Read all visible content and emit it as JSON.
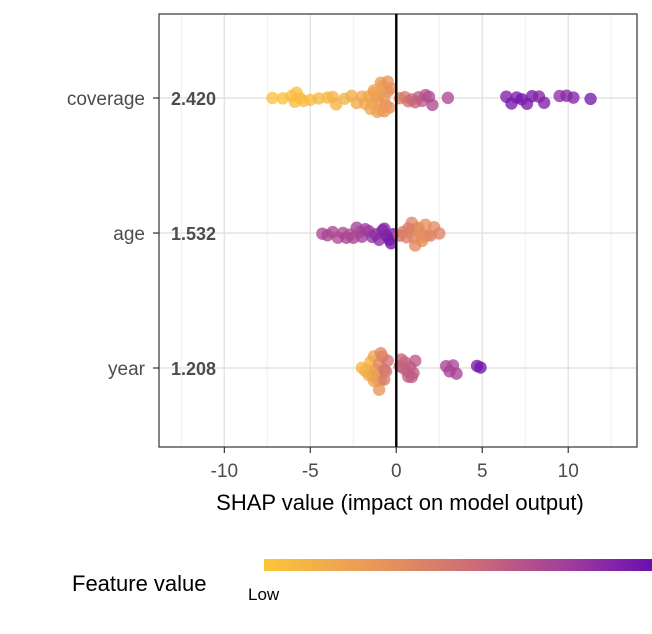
{
  "chart_data": {
    "type": "scatter",
    "title": "",
    "xlabel": "SHAP value (impact on model output)",
    "ylabel": "",
    "xlim": [
      -13.8,
      14
    ],
    "x_ticks": [
      -10,
      -5,
      0,
      5,
      10
    ],
    "x_tick_labels": [
      "-10",
      "-5",
      "0",
      "5",
      "10"
    ],
    "grid": true,
    "zero_line": 0,
    "features": [
      {
        "name": "coverage",
        "mean_abs_shap": "2.420"
      },
      {
        "name": "age",
        "mean_abs_shap": "1.532"
      },
      {
        "name": "year",
        "mean_abs_shap": "1.208"
      }
    ],
    "points": {
      "coverage": [
        {
          "x": -7.2,
          "v": 0.02
        },
        {
          "x": -6.6,
          "v": 0.03
        },
        {
          "x": -6.1,
          "v": 0.04
        },
        {
          "x": -5.9,
          "v": 0.05
        },
        {
          "x": -5.8,
          "v": 0.04
        },
        {
          "x": -5.6,
          "v": 0.06
        },
        {
          "x": -5.4,
          "v": 0.05
        },
        {
          "x": -5.0,
          "v": 0.06
        },
        {
          "x": -4.5,
          "v": 0.08
        },
        {
          "x": -4.0,
          "v": 0.08
        },
        {
          "x": -3.7,
          "v": 0.1
        },
        {
          "x": -3.5,
          "v": 0.12
        },
        {
          "x": -3.0,
          "v": 0.12
        },
        {
          "x": -2.6,
          "v": 0.15
        },
        {
          "x": -2.3,
          "v": 0.16
        },
        {
          "x": -2.0,
          "v": 0.18
        },
        {
          "x": -1.8,
          "v": 0.2
        },
        {
          "x": -1.6,
          "v": 0.18
        },
        {
          "x": -1.4,
          "v": 0.2
        },
        {
          "x": -1.3,
          "v": 0.22
        },
        {
          "x": -1.2,
          "v": 0.2
        },
        {
          "x": -1.1,
          "v": 0.24
        },
        {
          "x": -1.0,
          "v": 0.22
        },
        {
          "x": -0.9,
          "v": 0.25
        },
        {
          "x": -0.8,
          "v": 0.26
        },
        {
          "x": -0.7,
          "v": 0.28
        },
        {
          "x": -0.6,
          "v": 0.3
        },
        {
          "x": -0.5,
          "v": 0.28
        },
        {
          "x": -0.4,
          "v": 0.32
        },
        {
          "x": -0.3,
          "v": 0.33
        },
        {
          "x": -1.5,
          "v": 0.2
        },
        {
          "x": -1.1,
          "v": 0.22
        },
        {
          "x": -0.7,
          "v": 0.27
        },
        {
          "x": -1.3,
          "v": 0.21
        },
        {
          "x": -0.9,
          "v": 0.25
        },
        {
          "x": -0.5,
          "v": 0.3
        },
        {
          "x": 0.2,
          "v": 0.4
        },
        {
          "x": 0.5,
          "v": 0.45
        },
        {
          "x": 0.7,
          "v": 0.5
        },
        {
          "x": 0.9,
          "v": 0.55
        },
        {
          "x": 1.1,
          "v": 0.58
        },
        {
          "x": 1.3,
          "v": 0.6
        },
        {
          "x": 1.5,
          "v": 0.62
        },
        {
          "x": 1.7,
          "v": 0.66
        },
        {
          "x": 1.9,
          "v": 0.7
        },
        {
          "x": 2.1,
          "v": 0.72
        },
        {
          "x": 3.0,
          "v": 0.72
        },
        {
          "x": 6.4,
          "v": 0.92
        },
        {
          "x": 6.7,
          "v": 0.95
        },
        {
          "x": 7.0,
          "v": 0.93
        },
        {
          "x": 7.3,
          "v": 0.97
        },
        {
          "x": 7.6,
          "v": 0.94
        },
        {
          "x": 7.9,
          "v": 0.96
        },
        {
          "x": 8.3,
          "v": 0.9
        },
        {
          "x": 8.6,
          "v": 0.92
        },
        {
          "x": 9.5,
          "v": 0.85
        },
        {
          "x": 9.9,
          "v": 0.88
        },
        {
          "x": 10.3,
          "v": 0.9
        },
        {
          "x": 11.3,
          "v": 0.95
        }
      ],
      "age": [
        {
          "x": -4.3,
          "v": 0.72
        },
        {
          "x": -4.0,
          "v": 0.74
        },
        {
          "x": -3.7,
          "v": 0.73
        },
        {
          "x": -3.4,
          "v": 0.7
        },
        {
          "x": -3.1,
          "v": 0.72
        },
        {
          "x": -2.9,
          "v": 0.75
        },
        {
          "x": -2.7,
          "v": 0.7
        },
        {
          "x": -2.5,
          "v": 0.74
        },
        {
          "x": -2.3,
          "v": 0.76
        },
        {
          "x": -2.1,
          "v": 0.72
        },
        {
          "x": -2.0,
          "v": 0.77
        },
        {
          "x": -1.8,
          "v": 0.78
        },
        {
          "x": -1.6,
          "v": 0.8
        },
        {
          "x": -1.4,
          "v": 0.82
        },
        {
          "x": -1.2,
          "v": 0.85
        },
        {
          "x": -1.0,
          "v": 0.87
        },
        {
          "x": -0.8,
          "v": 0.9
        },
        {
          "x": -0.6,
          "v": 0.92
        },
        {
          "x": -0.4,
          "v": 0.95
        },
        {
          "x": -0.2,
          "v": 0.93
        },
        {
          "x": -0.7,
          "v": 0.9
        },
        {
          "x": -0.3,
          "v": 0.96
        },
        {
          "x": 0.2,
          "v": 0.5
        },
        {
          "x": 0.4,
          "v": 0.45
        },
        {
          "x": 0.6,
          "v": 0.42
        },
        {
          "x": 0.8,
          "v": 0.4
        },
        {
          "x": 1.0,
          "v": 0.38
        },
        {
          "x": 1.2,
          "v": 0.35
        },
        {
          "x": 1.4,
          "v": 0.33
        },
        {
          "x": 1.6,
          "v": 0.32
        },
        {
          "x": 1.8,
          "v": 0.35
        },
        {
          "x": 2.0,
          "v": 0.38
        },
        {
          "x": 2.2,
          "v": 0.36
        },
        {
          "x": 2.5,
          "v": 0.4
        },
        {
          "x": 1.3,
          "v": 0.34
        },
        {
          "x": 1.5,
          "v": 0.33
        },
        {
          "x": 1.1,
          "v": 0.36
        },
        {
          "x": 0.9,
          "v": 0.38
        },
        {
          "x": 1.7,
          "v": 0.34
        },
        {
          "x": 0.7,
          "v": 0.43
        }
      ],
      "year": [
        {
          "x": -2.0,
          "v": 0.1
        },
        {
          "x": -1.8,
          "v": 0.12
        },
        {
          "x": -1.7,
          "v": 0.1
        },
        {
          "x": -1.6,
          "v": 0.15
        },
        {
          "x": -1.5,
          "v": 0.12
        },
        {
          "x": -1.4,
          "v": 0.18
        },
        {
          "x": -1.3,
          "v": 0.2
        },
        {
          "x": -1.2,
          "v": 0.22
        },
        {
          "x": -1.1,
          "v": 0.25
        },
        {
          "x": -1.0,
          "v": 0.35
        },
        {
          "x": -0.9,
          "v": 0.4
        },
        {
          "x": -0.8,
          "v": 0.42
        },
        {
          "x": -0.7,
          "v": 0.45
        },
        {
          "x": -0.6,
          "v": 0.48
        },
        {
          "x": -0.5,
          "v": 0.5
        },
        {
          "x": -1.3,
          "v": 0.2
        },
        {
          "x": -1.1,
          "v": 0.24
        },
        {
          "x": -0.9,
          "v": 0.38
        },
        {
          "x": -0.7,
          "v": 0.44
        },
        {
          "x": -1.0,
          "v": 0.3
        },
        {
          "x": 0.2,
          "v": 0.55
        },
        {
          "x": 0.4,
          "v": 0.58
        },
        {
          "x": 0.6,
          "v": 0.6
        },
        {
          "x": 0.8,
          "v": 0.62
        },
        {
          "x": 1.0,
          "v": 0.62
        },
        {
          "x": 1.1,
          "v": 0.64
        },
        {
          "x": 0.5,
          "v": 0.6
        },
        {
          "x": 0.7,
          "v": 0.61
        },
        {
          "x": 0.9,
          "v": 0.63
        },
        {
          "x": 0.3,
          "v": 0.57
        },
        {
          "x": 2.9,
          "v": 0.75
        },
        {
          "x": 3.1,
          "v": 0.76
        },
        {
          "x": 3.3,
          "v": 0.74
        },
        {
          "x": 3.5,
          "v": 0.75
        },
        {
          "x": 4.7,
          "v": 0.95
        },
        {
          "x": 4.9,
          "v": 0.97
        }
      ]
    },
    "legend": {
      "title": "Feature value",
      "low_label": "Low",
      "colormap": "plasma",
      "placement": "bottom"
    }
  },
  "colors": {
    "low": "#fccd3a",
    "mid": "#d9766a",
    "high": "#6a00a8"
  }
}
